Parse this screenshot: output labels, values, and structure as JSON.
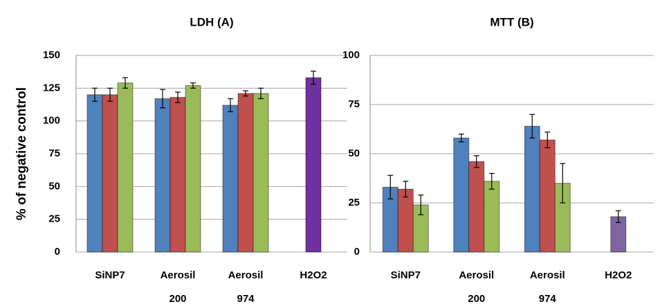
{
  "chart_data": [
    {
      "type": "bar",
      "title": "LDH (A)",
      "ylabel": "% of negative control",
      "categories": [
        "SiNP7",
        "Aerosil\n200",
        "Aerosil\n974",
        "H2O2"
      ],
      "series": [
        {
          "color": "#4f81bd",
          "values": [
            120,
            117,
            112,
            null
          ],
          "errors": [
            5,
            7,
            5,
            null
          ]
        },
        {
          "color": "#c0504d",
          "values": [
            120,
            118,
            121,
            null
          ],
          "errors": [
            5,
            4,
            2,
            null
          ]
        },
        {
          "color": "#9bbb59",
          "values": [
            129,
            127,
            121,
            null
          ],
          "errors": [
            4,
            2,
            4,
            null
          ]
        },
        {
          "color": "#7030a0",
          "values": [
            null,
            null,
            null,
            133
          ],
          "errors": [
            null,
            null,
            null,
            5
          ]
        }
      ],
      "ylim": [
        0,
        150
      ],
      "yticks": [
        0,
        25,
        50,
        75,
        100,
        125,
        150
      ],
      "grid": true
    },
    {
      "type": "bar",
      "title": "MTT (B)",
      "categories": [
        "SiNP7",
        "Aerosil\n200",
        "Aerosil\n974",
        "H2O2"
      ],
      "series": [
        {
          "color": "#4f81bd",
          "values": [
            33,
            58,
            64,
            null
          ],
          "errors": [
            6,
            2,
            6,
            null
          ]
        },
        {
          "color": "#c0504d",
          "values": [
            32,
            46,
            57,
            null
          ],
          "errors": [
            4,
            3,
            4,
            null
          ]
        },
        {
          "color": "#9bbb59",
          "values": [
            24,
            36,
            35,
            null
          ],
          "errors": [
            5,
            4,
            10,
            null
          ]
        },
        {
          "color": "#8064a2",
          "values": [
            null,
            null,
            null,
            18
          ],
          "errors": [
            null,
            null,
            null,
            3
          ]
        }
      ],
      "ylim": [
        0,
        100
      ],
      "yticks": [
        0,
        25,
        50,
        75,
        100
      ],
      "grid": true
    }
  ]
}
